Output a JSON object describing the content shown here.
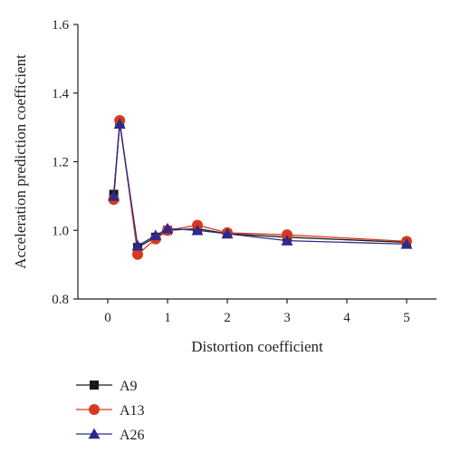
{
  "chart_data": {
    "type": "line",
    "xlabel": "Distortion coefficient",
    "ylabel": "Acceleration prediction coefficient",
    "xlim": [
      -0.5,
      5.5
    ],
    "ylim": [
      0.8,
      1.6
    ],
    "x_ticks": [
      0,
      1,
      2,
      3,
      4,
      5
    ],
    "x_tick_labels": [
      "0",
      "1",
      "2",
      "3",
      "4",
      "5"
    ],
    "y_ticks": [
      0.8,
      1.0,
      1.2,
      1.4,
      1.6
    ],
    "y_tick_labels": [
      "0.8",
      "1.0",
      "1.2",
      "1.4",
      "1.6"
    ],
    "grid": false,
    "legend_position": "bottom-left",
    "series": [
      {
        "name": "A9",
        "color": "#1a1a1a",
        "marker": "square",
        "x": [
          0.1,
          0.2,
          0.5,
          0.8,
          1.0,
          1.5,
          2.0,
          3.0,
          5.0
        ],
        "y": [
          1.105,
          1.315,
          0.95,
          0.98,
          1.0,
          1.005,
          0.99,
          0.98,
          0.965
        ]
      },
      {
        "name": "A13",
        "color": "#d63a1e",
        "marker": "circle",
        "x": [
          0.1,
          0.2,
          0.5,
          0.8,
          1.0,
          1.5,
          2.0,
          3.0,
          5.0
        ],
        "y": [
          1.09,
          1.32,
          0.93,
          0.975,
          1.0,
          1.015,
          0.993,
          0.987,
          0.968
        ]
      },
      {
        "name": "A26",
        "color": "#2e2a8c",
        "marker": "triangle",
        "x": [
          0.1,
          0.2,
          0.5,
          0.8,
          1.0,
          1.5,
          2.0,
          3.0,
          5.0
        ],
        "y": [
          1.1,
          1.31,
          0.955,
          0.985,
          1.005,
          1.0,
          0.99,
          0.97,
          0.96
        ]
      }
    ]
  }
}
